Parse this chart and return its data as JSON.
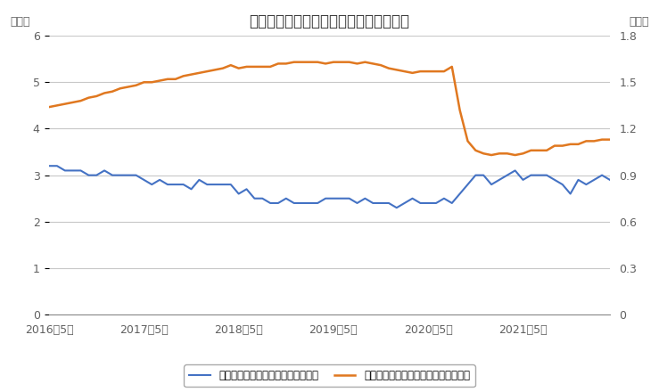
{
  "title": "日本の完全失業率と有効求人倍率の推移",
  "left_label": "（％）",
  "right_label": "（倍）",
  "left_ylim": [
    0,
    6
  ],
  "right_ylim": [
    0,
    1.8
  ],
  "left_yticks": [
    0,
    1,
    2,
    3,
    4,
    5,
    6
  ],
  "right_yticks": [
    0,
    0.3,
    0.6,
    0.9,
    1.2,
    1.5,
    1.8
  ],
  "xtick_labels": [
    "2016年5月",
    "2017年5月",
    "2018年5月",
    "2019年5月",
    "2020年5月",
    "2021年5月"
  ],
  "legend1": "完全失業率【季節調整値】（左軸）",
  "legend2": "有効求人倍率【季節調整値】（右軸）",
  "line1_color": "#4472C4",
  "line2_color": "#E07820",
  "background_color": "#FFFFFF",
  "grid_color": "#C8C8C8",
  "tick_color": "#606060",
  "unemployment": [
    3.2,
    3.2,
    3.1,
    3.1,
    3.1,
    3.0,
    3.0,
    3.1,
    3.0,
    3.0,
    3.0,
    3.0,
    2.9,
    2.8,
    2.9,
    2.8,
    2.8,
    2.8,
    2.7,
    2.9,
    2.8,
    2.8,
    2.8,
    2.8,
    2.6,
    2.7,
    2.5,
    2.5,
    2.4,
    2.4,
    2.5,
    2.4,
    2.4,
    2.4,
    2.4,
    2.5,
    2.5,
    2.5,
    2.5,
    2.4,
    2.5,
    2.4,
    2.4,
    2.4,
    2.3,
    2.4,
    2.5,
    2.4,
    2.4,
    2.4,
    2.5,
    2.4,
    2.6,
    2.8,
    3.0,
    3.0,
    2.8,
    2.9,
    3.0,
    3.1,
    2.9,
    3.0,
    3.0,
    3.0,
    2.9,
    2.8,
    2.6,
    2.9,
    2.8,
    2.9,
    3.0,
    2.9
  ],
  "job_ratio": [
    1.34,
    1.35,
    1.36,
    1.37,
    1.38,
    1.4,
    1.41,
    1.43,
    1.44,
    1.46,
    1.47,
    1.48,
    1.5,
    1.5,
    1.51,
    1.52,
    1.52,
    1.54,
    1.55,
    1.56,
    1.57,
    1.58,
    1.59,
    1.61,
    1.59,
    1.6,
    1.6,
    1.6,
    1.6,
    1.62,
    1.62,
    1.63,
    1.63,
    1.63,
    1.63,
    1.62,
    1.63,
    1.63,
    1.63,
    1.62,
    1.63,
    1.62,
    1.61,
    1.59,
    1.58,
    1.57,
    1.56,
    1.57,
    1.57,
    1.57,
    1.57,
    1.6,
    1.32,
    1.12,
    1.06,
    1.04,
    1.03,
    1.04,
    1.04,
    1.03,
    1.04,
    1.06,
    1.06,
    1.06,
    1.09,
    1.09,
    1.1,
    1.1,
    1.12,
    1.12,
    1.13,
    1.13
  ]
}
